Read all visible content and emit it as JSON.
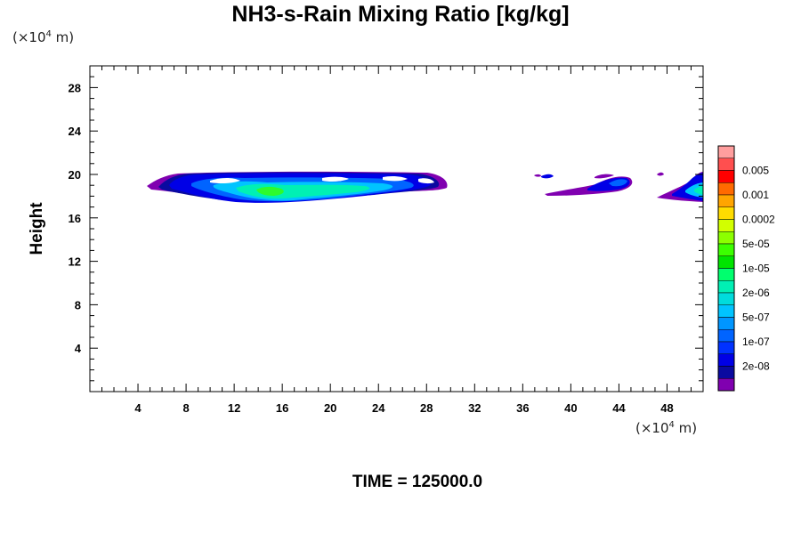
{
  "chart_data": {
    "type": "heatmap",
    "title": "NH3-s-Rain Mixing Ratio [kg/kg]",
    "xlabel": "",
    "ylabel": "Height",
    "x_unit": "(×10⁴ m)",
    "y_unit": "(×10⁴ m)",
    "xlim": [
      0,
      51
    ],
    "ylim": [
      0,
      30
    ],
    "x_ticks": [
      4,
      8,
      12,
      16,
      20,
      24,
      28,
      32,
      36,
      40,
      44,
      48
    ],
    "y_ticks": [
      4,
      8,
      12,
      16,
      20,
      24,
      28
    ],
    "colorbar": {
      "labels": [
        "0.005",
        "0.001",
        "0.0002",
        "5e-05",
        "1e-05",
        "2e-06",
        "5e-07",
        "1e-07",
        "2e-08"
      ],
      "colors": [
        "#ff9e9e",
        "#ff4f4f",
        "#ff0000",
        "#ff6a00",
        "#ffa500",
        "#ffdc00",
        "#d2ff00",
        "#8cff00",
        "#3cff00",
        "#00e400",
        "#00ff6e",
        "#00f0b4",
        "#00dcdc",
        "#00c4ff",
        "#0096ff",
        "#0064ff",
        "#0032ff",
        "#0000e6",
        "#0a0aa0",
        "#8000b0"
      ]
    },
    "regions": [
      {
        "x_range": [
          5,
          30
        ],
        "y_range": [
          17,
          20
        ],
        "peak": "1e-05"
      },
      {
        "x_range": [
          37,
          45
        ],
        "y_range": [
          18,
          20
        ],
        "peak": "1e-07"
      },
      {
        "x_range": [
          47,
          51
        ],
        "y_range": [
          17,
          20
        ],
        "peak": "5e-07"
      }
    ]
  },
  "footer": {
    "time_label": "TIME = 125000.0"
  }
}
